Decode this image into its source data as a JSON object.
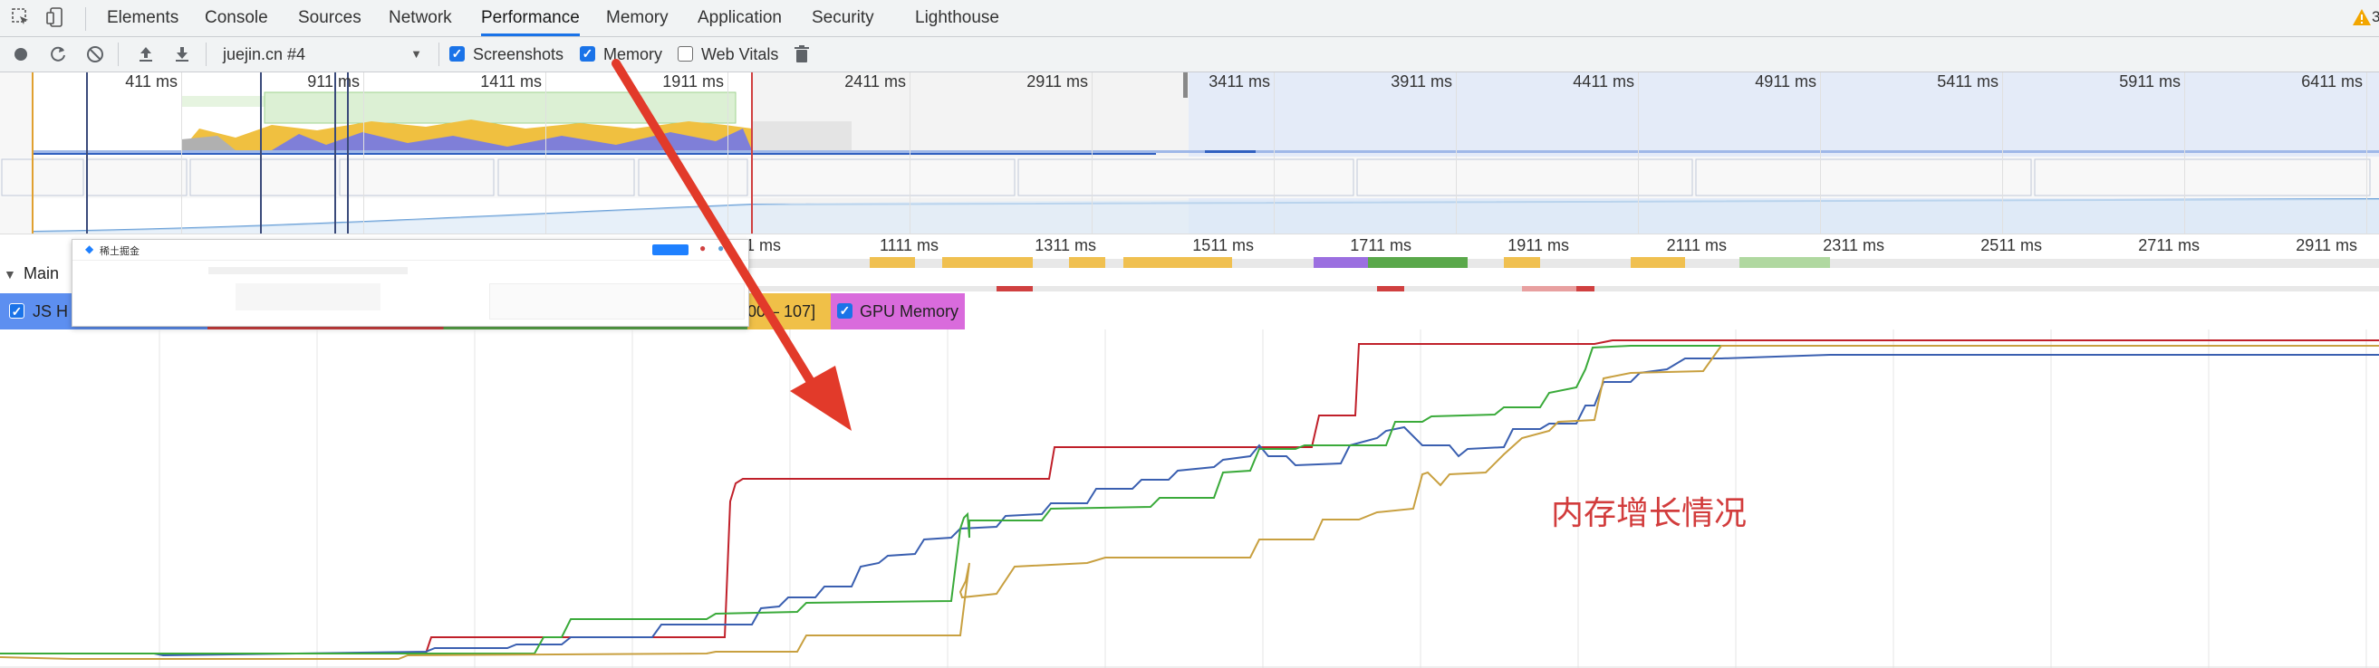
{
  "tabs": [
    {
      "label": "Elements",
      "active": false
    },
    {
      "label": "Console",
      "active": false
    },
    {
      "label": "Sources",
      "active": false
    },
    {
      "label": "Network",
      "active": false
    },
    {
      "label": "Performance",
      "active": true
    },
    {
      "label": "Memory",
      "active": false
    },
    {
      "label": "Application",
      "active": false
    },
    {
      "label": "Security",
      "active": false
    },
    {
      "label": "Lighthouse",
      "active": false
    }
  ],
  "warning_count": "3",
  "toolbar": {
    "profile_select": "juejin.cn #4",
    "screenshots_label": "Screenshots",
    "screenshots_checked": true,
    "memory_label": "Memory",
    "memory_checked": true,
    "web_vitals_label": "Web Vitals",
    "web_vitals_checked": false
  },
  "overview_ticks": [
    "411 ms",
    "911 ms",
    "1411 ms",
    "1911 ms",
    "2411 ms",
    "2911 ms",
    "3411 ms",
    "3911 ms",
    "4411 ms",
    "4911 ms",
    "5411 ms",
    "5911 ms",
    "6411 ms"
  ],
  "flame_ticks": [
    "711 ms",
    "1111 ms",
    "1311 ms",
    "1511 ms",
    "1711 ms",
    "1911 ms",
    "2111 ms",
    "2311 ms",
    "2511 ms",
    "2711 ms",
    "2911 ms"
  ],
  "main_track_label": "Main",
  "counters": {
    "js_heap_label": "JS H",
    "listeners_label": "00 – 107]",
    "gpu_memory_label": "GPU Memory",
    "colors": {
      "js_heap": "#4a7fe6",
      "gpu_memory": "#d24fd8"
    }
  },
  "tooltip": {
    "site_name": "稀土掘金"
  },
  "annotation": "内存增长情况",
  "series_colors": {
    "js_heap": "#3a5fb0",
    "documents": "#c0202a",
    "nodes": "#3aaa3a",
    "listeners": "#c8a040"
  }
}
